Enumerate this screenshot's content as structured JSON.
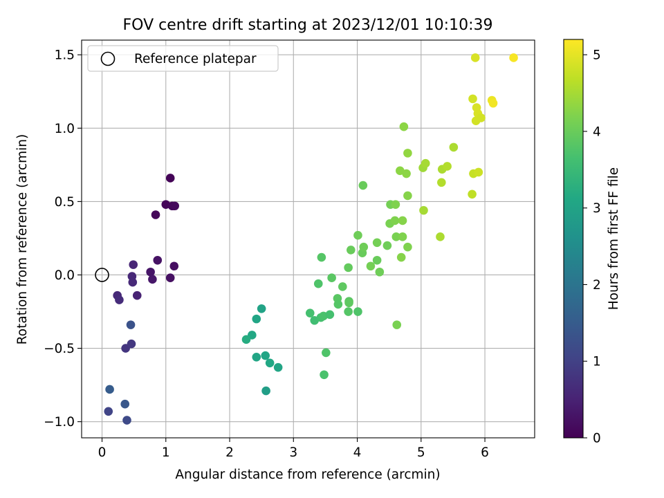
{
  "chart_data": {
    "type": "scatter",
    "title": "FOV centre drift starting at 2023/12/01 10:10:39",
    "xlabel": "Angular distance from reference (arcmin)",
    "ylabel": "Rotation from reference (arcmin)",
    "xlim": [
      -0.32,
      6.78
    ],
    "ylim": [
      -1.11,
      1.6
    ],
    "xticks": [
      0,
      1,
      2,
      3,
      4,
      5,
      6
    ],
    "xtick_labels": [
      "0",
      "1",
      "2",
      "3",
      "4",
      "5",
      "6"
    ],
    "yticks": [
      -1.0,
      -0.5,
      0.0,
      0.5,
      1.0,
      1.5
    ],
    "ytick_labels": [
      "−1.0",
      "−0.5",
      "0.0",
      "0.5",
      "1.0",
      "1.5"
    ],
    "grid": true,
    "legend": {
      "placement": "top-left",
      "entries": [
        {
          "label": "Reference platepar",
          "marker": "open-circle"
        }
      ]
    },
    "colorbar": {
      "label": "Hours from first FF file",
      "colormap": "viridis",
      "range": [
        0,
        5.2
      ],
      "ticks": [
        0,
        1,
        2,
        3,
        4,
        5
      ],
      "tick_labels": [
        "0",
        "1",
        "2",
        "3",
        "4",
        "5"
      ]
    },
    "reference_point": {
      "x": 0,
      "y": 0
    },
    "series": [
      {
        "points": [
          {
            "x": 1.07,
            "y": 0.66,
            "h": 0.05
          },
          {
            "x": 0.84,
            "y": 0.41,
            "h": 0.1
          },
          {
            "x": 1.0,
            "y": 0.48,
            "h": 0.08
          },
          {
            "x": 1.1,
            "y": 0.47,
            "h": 0.1
          },
          {
            "x": 1.14,
            "y": 0.47,
            "h": 0.12
          },
          {
            "x": 0.87,
            "y": 0.1,
            "h": 0.25
          },
          {
            "x": 1.13,
            "y": 0.06,
            "h": 0.2
          },
          {
            "x": 0.76,
            "y": 0.02,
            "h": 0.3
          },
          {
            "x": 0.79,
            "y": -0.03,
            "h": 0.33
          },
          {
            "x": 1.07,
            "y": -0.02,
            "h": 0.22
          },
          {
            "x": 0.49,
            "y": 0.07,
            "h": 0.55
          },
          {
            "x": 0.47,
            "y": -0.01,
            "h": 0.58
          },
          {
            "x": 0.48,
            "y": -0.05,
            "h": 0.6
          },
          {
            "x": 0.55,
            "y": -0.14,
            "h": 0.5
          },
          {
            "x": 0.24,
            "y": -0.14,
            "h": 0.6
          },
          {
            "x": 0.27,
            "y": -0.17,
            "h": 0.65
          },
          {
            "x": 0.37,
            "y": -0.5,
            "h": 0.8
          },
          {
            "x": 0.46,
            "y": -0.47,
            "h": 0.85
          },
          {
            "x": 0.45,
            "y": -0.34,
            "h": 1.3
          },
          {
            "x": 0.12,
            "y": -0.78,
            "h": 1.5
          },
          {
            "x": 0.1,
            "y": -0.93,
            "h": 1.05
          },
          {
            "x": 0.36,
            "y": -0.88,
            "h": 1.4
          },
          {
            "x": 0.39,
            "y": -0.99,
            "h": 1.15
          },
          {
            "x": 2.5,
            "y": -0.23,
            "h": 3.0
          },
          {
            "x": 2.42,
            "y": -0.3,
            "h": 3.05
          },
          {
            "x": 2.35,
            "y": -0.41,
            "h": 3.1
          },
          {
            "x": 2.26,
            "y": -0.44,
            "h": 3.2
          },
          {
            "x": 2.42,
            "y": -0.56,
            "h": 3.05
          },
          {
            "x": 2.56,
            "y": -0.55,
            "h": 3.05
          },
          {
            "x": 2.63,
            "y": -0.6,
            "h": 3.1
          },
          {
            "x": 2.76,
            "y": -0.63,
            "h": 3.05
          },
          {
            "x": 2.57,
            "y": -0.79,
            "h": 2.9
          },
          {
            "x": 3.44,
            "y": 0.12,
            "h": 3.8
          },
          {
            "x": 3.39,
            "y": -0.06,
            "h": 3.75
          },
          {
            "x": 3.26,
            "y": -0.26,
            "h": 3.65
          },
          {
            "x": 3.33,
            "y": -0.31,
            "h": 3.6
          },
          {
            "x": 3.43,
            "y": -0.29,
            "h": 3.65
          },
          {
            "x": 3.47,
            "y": -0.28,
            "h": 3.7
          },
          {
            "x": 3.57,
            "y": -0.27,
            "h": 3.65
          },
          {
            "x": 3.51,
            "y": -0.53,
            "h": 3.75
          },
          {
            "x": 3.48,
            "y": -0.68,
            "h": 3.7
          },
          {
            "x": 3.6,
            "y": -0.02,
            "h": 3.85
          },
          {
            "x": 3.77,
            "y": -0.08,
            "h": 3.9
          },
          {
            "x": 3.69,
            "y": -0.16,
            "h": 3.85
          },
          {
            "x": 3.7,
            "y": -0.2,
            "h": 3.8
          },
          {
            "x": 3.87,
            "y": -0.18,
            "h": 3.85
          },
          {
            "x": 3.87,
            "y": -0.19,
            "h": 3.9
          },
          {
            "x": 3.86,
            "y": -0.25,
            "h": 3.8
          },
          {
            "x": 4.01,
            "y": -0.25,
            "h": 3.75
          },
          {
            "x": 3.86,
            "y": 0.05,
            "h": 3.95
          },
          {
            "x": 3.9,
            "y": 0.17,
            "h": 4.0
          },
          {
            "x": 4.01,
            "y": 0.27,
            "h": 4.05
          },
          {
            "x": 4.08,
            "y": 0.15,
            "h": 4.0
          },
          {
            "x": 4.1,
            "y": 0.19,
            "h": 4.05
          },
          {
            "x": 4.21,
            "y": 0.06,
            "h": 4.1
          },
          {
            "x": 4.31,
            "y": 0.1,
            "h": 4.0
          },
          {
            "x": 4.35,
            "y": 0.02,
            "h": 4.05
          },
          {
            "x": 4.31,
            "y": 0.22,
            "h": 4.1
          },
          {
            "x": 4.47,
            "y": 0.2,
            "h": 4.05
          },
          {
            "x": 4.09,
            "y": 0.61,
            "h": 4.0
          },
          {
            "x": 4.52,
            "y": 0.48,
            "h": 4.1
          },
          {
            "x": 4.6,
            "y": 0.48,
            "h": 4.2
          },
          {
            "x": 4.51,
            "y": 0.35,
            "h": 4.15
          },
          {
            "x": 4.59,
            "y": 0.37,
            "h": 4.2
          },
          {
            "x": 4.71,
            "y": 0.37,
            "h": 4.25
          },
          {
            "x": 4.61,
            "y": 0.26,
            "h": 4.15
          },
          {
            "x": 4.71,
            "y": 0.26,
            "h": 4.2
          },
          {
            "x": 4.69,
            "y": 0.12,
            "h": 4.25
          },
          {
            "x": 4.79,
            "y": 0.19,
            "h": 4.2
          },
          {
            "x": 4.62,
            "y": -0.34,
            "h": 4.15
          },
          {
            "x": 4.79,
            "y": 0.54,
            "h": 4.25
          },
          {
            "x": 4.67,
            "y": 0.71,
            "h": 4.3
          },
          {
            "x": 4.77,
            "y": 0.69,
            "h": 4.3
          },
          {
            "x": 4.79,
            "y": 0.83,
            "h": 4.35
          },
          {
            "x": 4.73,
            "y": 1.01,
            "h": 4.3
          },
          {
            "x": 5.04,
            "y": 0.44,
            "h": 4.5
          },
          {
            "x": 5.03,
            "y": 0.73,
            "h": 4.45
          },
          {
            "x": 5.07,
            "y": 0.76,
            "h": 4.5
          },
          {
            "x": 5.33,
            "y": 0.72,
            "h": 4.55
          },
          {
            "x": 5.41,
            "y": 0.74,
            "h": 4.6
          },
          {
            "x": 5.32,
            "y": 0.63,
            "h": 4.6
          },
          {
            "x": 5.51,
            "y": 0.87,
            "h": 4.55
          },
          {
            "x": 5.3,
            "y": 0.26,
            "h": 4.55
          },
          {
            "x": 5.8,
            "y": 0.55,
            "h": 4.7
          },
          {
            "x": 5.82,
            "y": 0.69,
            "h": 4.75
          },
          {
            "x": 5.9,
            "y": 0.7,
            "h": 4.8
          },
          {
            "x": 5.81,
            "y": 1.2,
            "h": 4.85
          },
          {
            "x": 5.87,
            "y": 1.14,
            "h": 4.9
          },
          {
            "x": 5.89,
            "y": 1.1,
            "h": 4.9
          },
          {
            "x": 5.86,
            "y": 1.05,
            "h": 4.85
          },
          {
            "x": 5.94,
            "y": 1.07,
            "h": 4.85
          },
          {
            "x": 6.11,
            "y": 1.19,
            "h": 5.05
          },
          {
            "x": 6.13,
            "y": 1.17,
            "h": 5.1
          },
          {
            "x": 5.85,
            "y": 1.48,
            "h": 4.9
          },
          {
            "x": 6.45,
            "y": 1.48,
            "h": 5.15
          }
        ]
      }
    ]
  }
}
